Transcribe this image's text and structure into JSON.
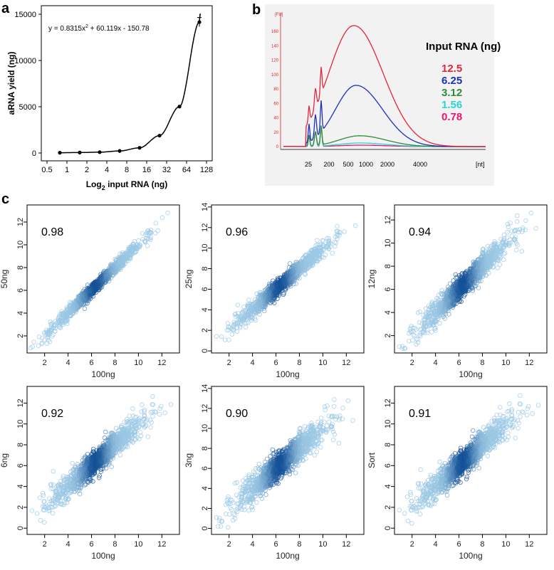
{
  "panel_labels": {
    "a": "a",
    "b": "b",
    "c": "c"
  },
  "chart_data": [
    {
      "panel": "a",
      "type": "scatter",
      "xscale": "log2",
      "xlabel_main": "Log",
      "xlabel_sub": "2",
      "xlabel_rest": " input RNA (ng)",
      "ylabel": "aRNA yield (ng)",
      "equation_main": "y = 0.8315x",
      "equation_sup": "2",
      "equation_rest": " + 60.119x - 150.78",
      "xticks": [
        0.5,
        1,
        2,
        4,
        8,
        16,
        32,
        64,
        128
      ],
      "xtick_labels": [
        "0.5",
        "1",
        "2",
        "4",
        "8",
        "16",
        "32",
        "64",
        "128"
      ],
      "yticks": [
        0,
        5000,
        10000,
        15000
      ],
      "ytick_labels": [
        "0",
        "5000",
        "10000",
        "15000"
      ],
      "ylim": [
        -300,
        15000
      ],
      "x": [
        0.78,
        1.56,
        3.12,
        6.25,
        12.5,
        25,
        50,
        100
      ],
      "y": [
        30,
        50,
        90,
        220,
        560,
        1880,
        5020,
        14150
      ],
      "yerr": [
        0,
        0,
        0,
        0,
        0,
        0,
        0,
        500
      ],
      "fit_coef": [
        0.8315,
        60.119,
        -150.78
      ]
    },
    {
      "panel": "b",
      "type": "line",
      "xlabel": "[nt]",
      "ylabel": "[FU]",
      "xtick_labels": [
        "25",
        "200",
        "500",
        "1000",
        "2000",
        "4000"
      ],
      "ytick_labels": [
        "160",
        "140",
        "120",
        "100",
        "80",
        "60",
        "40",
        "20",
        "0"
      ],
      "legend_title": "Input RNA (ng)",
      "series": [
        {
          "name": "12.5",
          "color": "#e8233c",
          "peak": 168
        },
        {
          "name": "6.25",
          "color": "#1e2fb5",
          "peak": 85
        },
        {
          "name": "3.12",
          "color": "#2e8b3a",
          "peak": 15
        },
        {
          "name": "1.56",
          "color": "#2ad4d4",
          "peak": 5
        },
        {
          "name": "0.78",
          "color": "#e8176b",
          "peak": 2
        }
      ]
    },
    {
      "panel": "c",
      "type": "scatter",
      "xlabel": "100ng",
      "plots": [
        {
          "ylabel": "50ng",
          "r": "0.98",
          "spread": 0.32,
          "yticks": [
            "2",
            "4",
            "6",
            "8",
            "10",
            "12"
          ],
          "ymin": 0.5,
          "ymax": 13.5
        },
        {
          "ylabel": "25ng",
          "r": "0.96",
          "spread": 0.48,
          "yticks": [
            "0",
            "2",
            "4",
            "6",
            "8",
            "10",
            "12",
            "14"
          ],
          "ymin": -0.2,
          "ymax": 14.2
        },
        {
          "ylabel": "12ng",
          "r": "0.94",
          "spread": 0.62,
          "yticks": [
            "2",
            "4",
            "6",
            "8",
            "10",
            "12"
          ],
          "ymin": 0.5,
          "ymax": 13.3
        },
        {
          "ylabel": "6ng",
          "r": "0.92",
          "spread": 0.75,
          "yticks": [
            "0",
            "2",
            "4",
            "6",
            "8",
            "10",
            "12"
          ],
          "ymin": -0.6,
          "ymax": 13.6
        },
        {
          "ylabel": "3ng",
          "r": "0.90",
          "spread": 0.85,
          "yticks": [
            "0",
            "2",
            "4",
            "6",
            "8",
            "10",
            "12",
            "14"
          ],
          "ymin": -0.6,
          "ymax": 14.2
        },
        {
          "ylabel": "Sort",
          "r": "0.91",
          "spread": 0.8,
          "yticks": [
            "0",
            "2",
            "4",
            "6",
            "8",
            "10",
            "12"
          ],
          "ymin": -0.6,
          "ymax": 13.6
        }
      ],
      "xtick_labels": [
        "2",
        "4",
        "6",
        "8",
        "10",
        "12"
      ],
      "xlim": [
        0.5,
        13.5
      ]
    }
  ]
}
